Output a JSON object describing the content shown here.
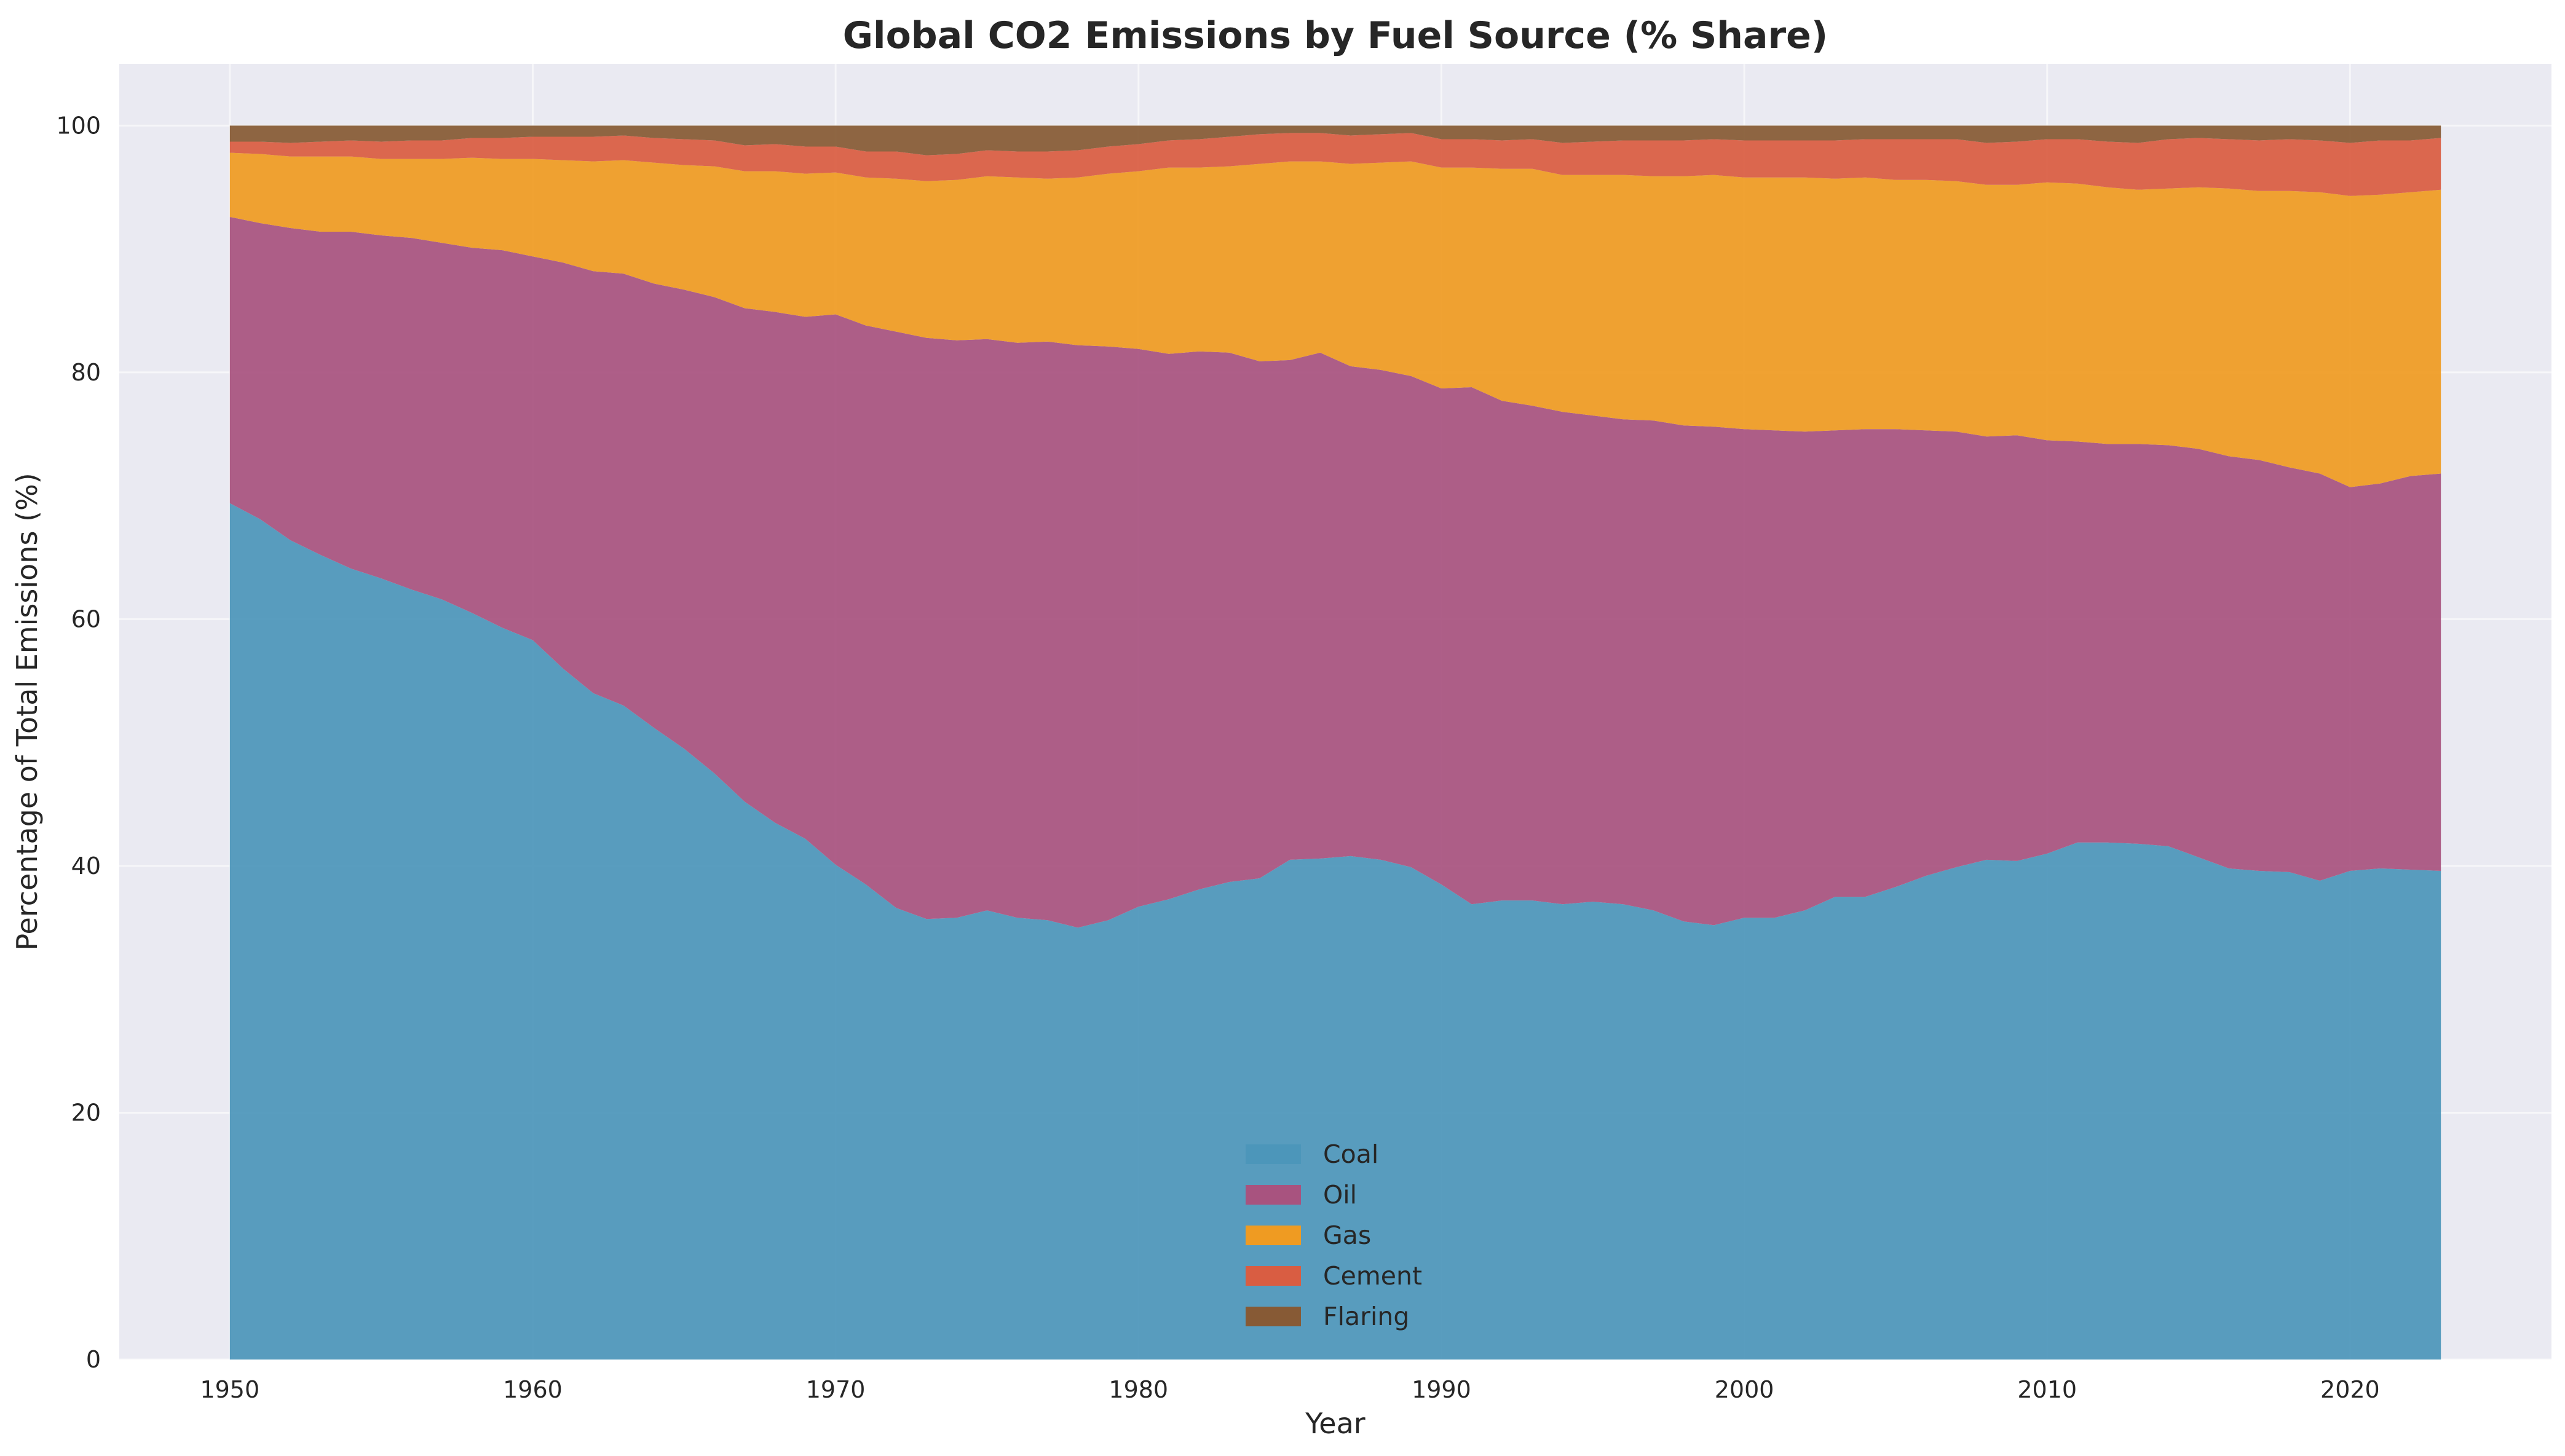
{
  "chart_data": {
    "type": "area",
    "title": "Global CO2 Emissions by Fuel Source (% Share)",
    "xlabel": "Year",
    "ylabel": "Percentage of Total Emissions (%)",
    "xlim": [
      1946.35,
      2026.65
    ],
    "ylim": [
      0,
      105
    ],
    "xticks": [
      1950,
      1960,
      1970,
      1980,
      1990,
      2000,
      2010,
      2020
    ],
    "yticks": [
      0,
      20,
      40,
      60,
      80,
      100
    ],
    "grid": true,
    "stacked": true,
    "legend_position": "lower-center",
    "x": [
      1950,
      1951,
      1952,
      1953,
      1954,
      1955,
      1956,
      1957,
      1958,
      1959,
      1960,
      1961,
      1962,
      1963,
      1964,
      1965,
      1966,
      1967,
      1968,
      1969,
      1970,
      1971,
      1972,
      1973,
      1974,
      1975,
      1976,
      1977,
      1978,
      1979,
      1980,
      1981,
      1982,
      1983,
      1984,
      1985,
      1986,
      1987,
      1988,
      1989,
      1990,
      1991,
      1992,
      1993,
      1994,
      1995,
      1996,
      1997,
      1998,
      1999,
      2000,
      2001,
      2002,
      2003,
      2004,
      2005,
      2006,
      2007,
      2008,
      2009,
      2010,
      2011,
      2012,
      2013,
      2014,
      2015,
      2016,
      2017,
      2018,
      2019,
      2020,
      2021,
      2022,
      2023
    ],
    "series": [
      {
        "name": "Coal",
        "color": "#4C96BA",
        "values": [
          69.4,
          68.1,
          66.4,
          65.2,
          64.1,
          63.3,
          62.4,
          61.6,
          60.5,
          59.3,
          58.3,
          56.0,
          54.0,
          53.0,
          51.2,
          49.5,
          47.5,
          45.2,
          43.5,
          42.2,
          40.1,
          38.5,
          36.6,
          35.7,
          35.8,
          36.4,
          35.8,
          35.6,
          35.0,
          35.6,
          36.7,
          37.3,
          38.1,
          38.7,
          39.0,
          40.5,
          40.6,
          40.8,
          40.5,
          39.9,
          38.5,
          36.9,
          37.2,
          37.2,
          36.9,
          37.1,
          36.9,
          36.4,
          35.5,
          35.2,
          35.8,
          35.8,
          36.4,
          37.5,
          37.5,
          38.3,
          39.2,
          39.9,
          40.5,
          40.4,
          41.0,
          41.9,
          41.9,
          41.8,
          41.6,
          40.7,
          39.8,
          39.6,
          39.5,
          38.8,
          39.6,
          39.8,
          39.7,
          39.6
        ]
      },
      {
        "name": "Oil",
        "color": "#A8537F",
        "values": [
          23.2,
          24.0,
          25.3,
          26.2,
          27.3,
          27.8,
          28.5,
          28.9,
          29.6,
          30.6,
          31.1,
          32.9,
          34.2,
          35.0,
          36.0,
          37.2,
          38.6,
          40.0,
          41.4,
          42.3,
          44.6,
          45.3,
          46.7,
          47.1,
          46.8,
          46.3,
          46.6,
          46.9,
          47.2,
          46.5,
          45.2,
          44.2,
          43.6,
          42.9,
          41.9,
          40.5,
          41.0,
          39.7,
          39.7,
          39.8,
          40.2,
          41.9,
          40.5,
          40.1,
          39.9,
          39.4,
          39.3,
          39.7,
          40.2,
          40.4,
          39.6,
          39.5,
          38.8,
          37.8,
          37.9,
          37.1,
          36.1,
          35.3,
          34.3,
          34.5,
          33.5,
          32.5,
          32.3,
          32.4,
          32.5,
          33.1,
          33.4,
          33.3,
          32.8,
          33.0,
          31.1,
          31.2,
          31.9,
          32.2
        ]
      },
      {
        "name": "Gas",
        "color": "#EF9B22",
        "values": [
          5.2,
          5.6,
          5.8,
          6.1,
          6.1,
          6.2,
          6.4,
          6.8,
          7.3,
          7.4,
          7.9,
          8.3,
          8.9,
          9.2,
          9.8,
          10.1,
          10.6,
          11.1,
          11.4,
          11.6,
          11.5,
          12.0,
          12.4,
          12.7,
          13.0,
          13.2,
          13.4,
          13.2,
          13.6,
          14.0,
          14.4,
          15.1,
          14.9,
          15.1,
          16.0,
          16.1,
          15.5,
          16.4,
          16.8,
          17.4,
          17.9,
          17.8,
          18.8,
          19.2,
          19.2,
          19.5,
          19.8,
          19.8,
          20.2,
          20.4,
          20.4,
          20.5,
          20.6,
          20.4,
          20.4,
          20.2,
          20.3,
          20.3,
          20.4,
          20.3,
          20.9,
          20.9,
          20.8,
          20.6,
          20.8,
          21.2,
          21.7,
          21.8,
          22.4,
          22.8,
          23.6,
          23.4,
          23.0,
          23.0
        ]
      },
      {
        "name": "Cement",
        "color": "#D95D42",
        "values": [
          0.9,
          1.0,
          1.1,
          1.2,
          1.3,
          1.4,
          1.5,
          1.5,
          1.6,
          1.7,
          1.8,
          1.9,
          2.0,
          2.0,
          2.0,
          2.1,
          2.1,
          2.1,
          2.2,
          2.2,
          2.1,
          2.1,
          2.2,
          2.1,
          2.1,
          2.1,
          2.1,
          2.2,
          2.2,
          2.2,
          2.2,
          2.2,
          2.3,
          2.4,
          2.4,
          2.3,
          2.3,
          2.3,
          2.3,
          2.3,
          2.3,
          2.3,
          2.3,
          2.4,
          2.6,
          2.7,
          2.8,
          2.9,
          2.9,
          2.9,
          3.0,
          3.0,
          3.0,
          3.1,
          3.1,
          3.3,
          3.3,
          3.4,
          3.4,
          3.5,
          3.5,
          3.6,
          3.7,
          3.8,
          4.0,
          4.0,
          4.0,
          4.1,
          4.2,
          4.2,
          4.3,
          4.4,
          4.2,
          4.2
        ]
      },
      {
        "name": "Flaring",
        "color": "#875A35",
        "values": [
          1.3,
          1.3,
          1.4,
          1.3,
          1.2,
          1.3,
          1.2,
          1.2,
          1.0,
          1.0,
          0.9,
          0.9,
          0.9,
          0.8,
          1.0,
          1.1,
          1.2,
          1.6,
          1.5,
          1.7,
          1.7,
          2.1,
          2.1,
          2.4,
          2.3,
          2.0,
          2.1,
          2.1,
          2.0,
          1.7,
          1.5,
          1.2,
          1.1,
          0.9,
          0.7,
          0.6,
          0.6,
          0.8,
          0.7,
          0.6,
          1.1,
          1.1,
          1.2,
          1.1,
          1.4,
          1.3,
          1.2,
          1.2,
          1.2,
          1.1,
          1.2,
          1.2,
          1.2,
          1.2,
          1.1,
          1.1,
          1.1,
          1.1,
          1.4,
          1.3,
          1.1,
          1.1,
          1.3,
          1.4,
          1.1,
          1.0,
          1.1,
          1.2,
          1.1,
          1.2,
          1.4,
          1.2,
          1.2,
          1.0
        ]
      }
    ]
  }
}
